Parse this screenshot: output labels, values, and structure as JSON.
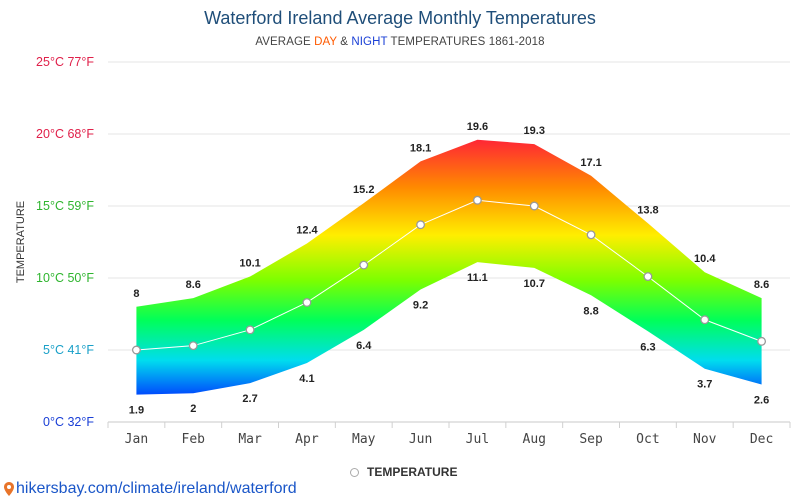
{
  "chart_data": {
    "type": "area",
    "title": "Waterford Ireland Average Monthly Temperatures",
    "subtitle_prefix": "AVERAGE ",
    "subtitle_day": "DAY",
    "subtitle_amp": " & ",
    "subtitle_night": "NIGHT",
    "subtitle_suffix": " TEMPERATURES 1861-2018",
    "ylabel": "TEMPERATURE",
    "ylim": [
      0,
      25
    ],
    "y_ticks": [
      {
        "value": 0,
        "label": "0°C 32°F",
        "color": "#1a3fd6"
      },
      {
        "value": 5,
        "label": "5°C 41°F",
        "color": "#1aa0c8"
      },
      {
        "value": 10,
        "label": "10°C 50°F",
        "color": "#2fb52f"
      },
      {
        "value": 15,
        "label": "15°C 59°F",
        "color": "#2fb52f"
      },
      {
        "value": 20,
        "label": "20°C 68°F",
        "color": "#e0204a"
      },
      {
        "value": 25,
        "label": "25°C 77°F",
        "color": "#e0204a"
      }
    ],
    "categories": [
      "Jan",
      "Feb",
      "Mar",
      "Apr",
      "May",
      "Jun",
      "Jul",
      "Aug",
      "Sep",
      "Oct",
      "Nov",
      "Dec"
    ],
    "series": [
      {
        "name": "DAY",
        "values": [
          8,
          8.6,
          10.1,
          12.4,
          15.2,
          18.1,
          19.6,
          19.3,
          17.1,
          13.8,
          10.4,
          8.6
        ]
      },
      {
        "name": "NIGHT",
        "values": [
          1.9,
          2,
          2.7,
          4.1,
          6.4,
          9.2,
          11.1,
          10.7,
          8.8,
          6.3,
          3.7,
          2.6
        ]
      },
      {
        "name": "TEMPERATURE",
        "values": [
          5.0,
          5.3,
          6.4,
          8.3,
          10.9,
          13.7,
          15.4,
          15.0,
          13.0,
          10.1,
          7.1,
          5.6
        ]
      }
    ],
    "grid": true,
    "legend": "bottom-center",
    "legend_label": "TEMPERATURE"
  },
  "source": "hikersbay.com/climate/ireland/waterford"
}
